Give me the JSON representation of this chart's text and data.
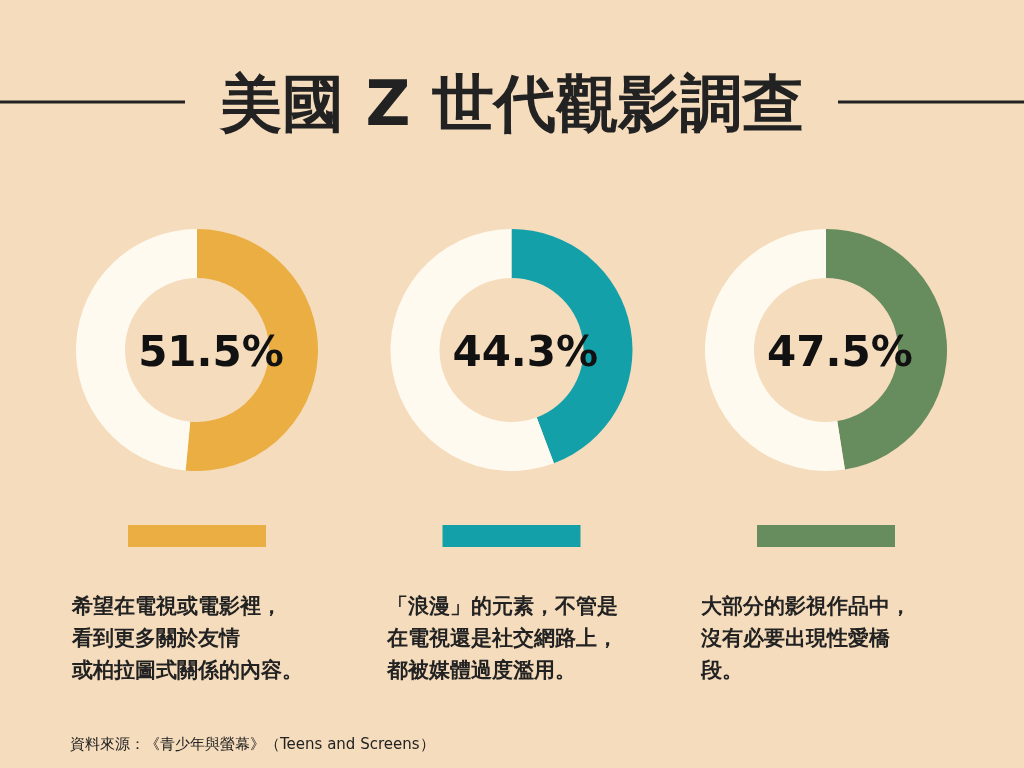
{
  "chart_data": [
    {
      "type": "donut",
      "title": "美國 Z 世代觀影調查",
      "categories": [
        null,
        null
      ],
      "values": [
        51.5,
        48.5
      ],
      "colors": [
        "#ebae42",
        "#fffaf0"
      ],
      "value_labels": [
        "51.5%",
        null
      ],
      "annotations": [
        "希望在電視或電影裡，",
        "看到更多關於友情",
        "或柏拉圖式關係的內容。"
      ]
    },
    {
      "type": "donut",
      "categories": [
        null,
        null
      ],
      "values": [
        44.3,
        55.7
      ],
      "colors": [
        "#13a0a9",
        "#fffaf0"
      ],
      "value_labels": [
        "44.3%",
        null
      ],
      "annotations": [
        "「浪漫」的元素，不管是",
        "在電視還是社交網路上，",
        "都被媒體過度濫用。"
      ]
    },
    {
      "type": "donut",
      "categories": [
        null,
        null
      ],
      "values": [
        47.5,
        52.5
      ],
      "colors": [
        "#678c5d",
        "#fffaf0"
      ],
      "value_labels": [
        "47.5%",
        null
      ],
      "annotations": [
        "大部分的影視作品中，",
        "沒有必要出現性愛橋",
        "段。"
      ]
    },
    {
      "type": "other",
      "annotations": [
        "資料來源：《青少年與螢幕》（Teens and Screens）"
      ]
    }
  ]
}
